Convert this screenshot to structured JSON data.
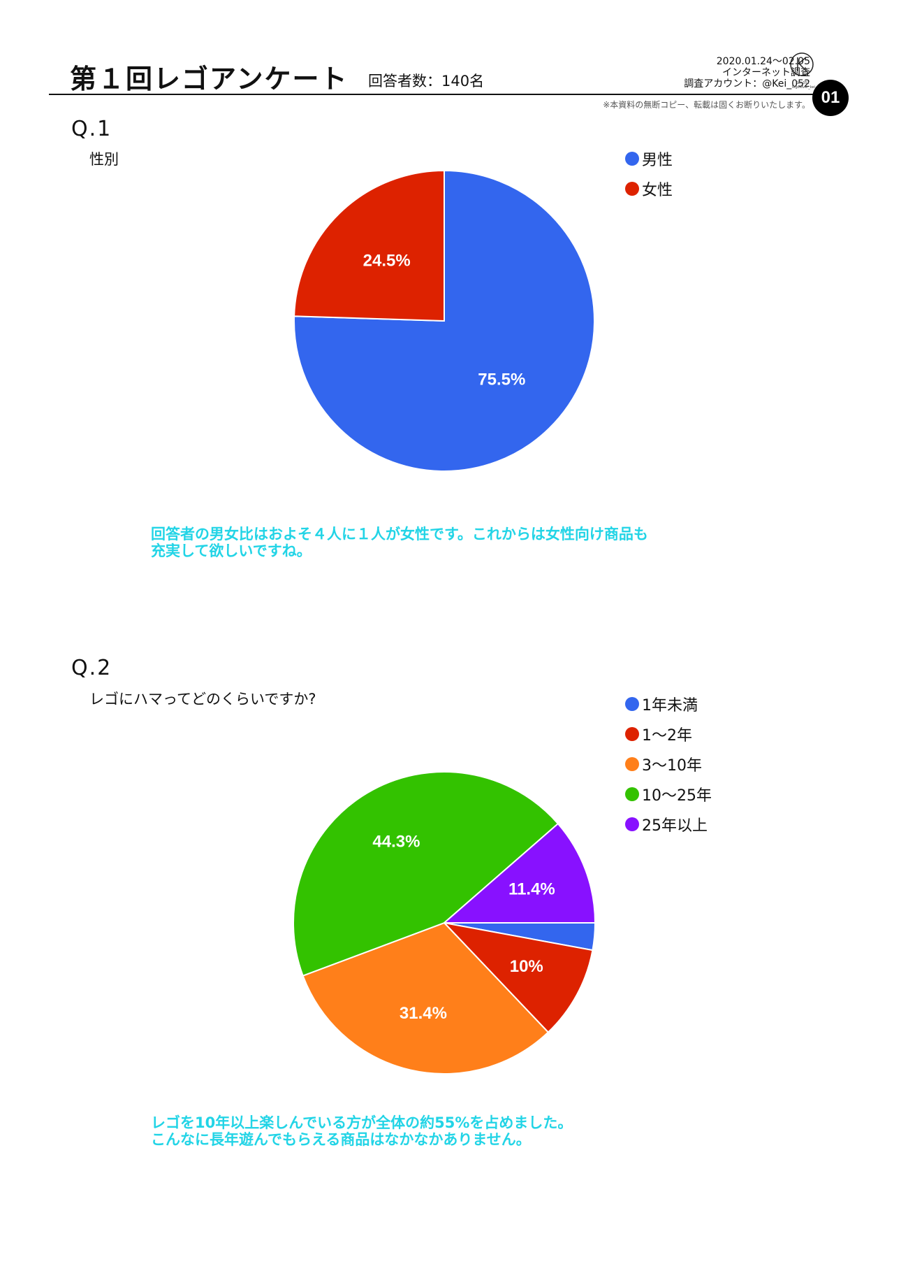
{
  "header": {
    "title": "第１回レゴアンケート",
    "respondents": "回答者数：140名",
    "period": "2020.01.24〜02.05",
    "method": "インターネット調査",
    "account": "調査アカウント：@Kei_052",
    "logo_caption": "Kei_052 legolover_kei",
    "copyright_note": "※本資料の無断コピー、転載は固くお断りいたします。",
    "page_number": "01"
  },
  "questions": [
    {
      "number": "Q.1",
      "text": "性別",
      "comment_lines": [
        "回答者の男女比はおよそ４人に１人が女性です。これからは女性向け商品も",
        "充実して欲しいですね。"
      ]
    },
    {
      "number": "Q.2",
      "text": "レゴにハマってどのくらいですか?",
      "comment_lines": [
        "レゴを10年以上楽しんでいる方が全体の約55%を占めました。",
        "こんなに長年遊んでもらえる商品はなかなかありません。"
      ]
    }
  ],
  "chart_data": [
    {
      "type": "pie",
      "categories": [
        "男性",
        "女性"
      ],
      "values": [
        75.5,
        24.5
      ],
      "labels": [
        "75.5%",
        "24.5%"
      ],
      "colors": [
        "#3366ee",
        "#dd2200"
      ],
      "legend_position": "top-right"
    },
    {
      "type": "pie",
      "categories": [
        "1年未満",
        "1〜2年",
        "3〜10年",
        "10〜25年",
        "25年以上"
      ],
      "values": [
        2.9,
        10,
        31.4,
        44.3,
        11.4
      ],
      "labels": [
        "",
        "10%",
        "31.4%",
        "44.3%",
        "11.4%"
      ],
      "colors": [
        "#3366ee",
        "#dd2200",
        "#ff7f1a",
        "#33c200",
        "#8811ff"
      ],
      "legend_position": "top-right"
    }
  ]
}
